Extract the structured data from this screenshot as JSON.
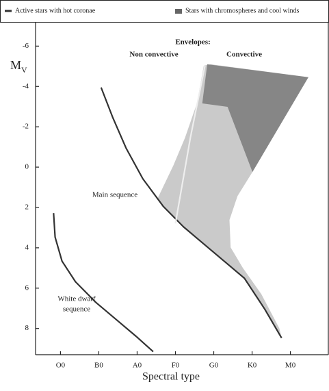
{
  "chart_data": {
    "type": "line",
    "legend": [
      {
        "name": "Active stars with hot coronae",
        "style": "line",
        "color": "#333333"
      },
      {
        "name": "Stars with chromospheres and cool winds",
        "style": "fill",
        "color": "#666666"
      }
    ],
    "y_label": "M",
    "y_label_sub": "V",
    "x_label": "Spectral type",
    "xlim": [
      -0.65,
      6.9
    ],
    "xticks": [
      {
        "value": 0,
        "label": "O0"
      },
      {
        "value": 1,
        "label": "B0"
      },
      {
        "value": 2,
        "label": "A0"
      },
      {
        "value": 3,
        "label": "F0"
      },
      {
        "value": 4,
        "label": "G0"
      },
      {
        "value": 5,
        "label": "K0"
      },
      {
        "value": 6,
        "label": "M0"
      }
    ],
    "ylim": [
      -7.2,
      9.3
    ],
    "y_inverted": true,
    "yticks": [
      -6,
      -4,
      -2,
      0,
      2,
      4,
      6,
      8
    ],
    "annotations": [
      "Envelopes:",
      "Non convective",
      "Convective",
      "Main sequence",
      "White dwarf",
      "sequence"
    ],
    "regions": [
      {
        "color": "#c4c4c4",
        "x": [
          2.54,
          2.95,
          3.25,
          3.56,
          3.74,
          3.92,
          6.47,
          5.01,
          4.62,
          4.41,
          4.44,
          4.76,
          5.24,
          5.71,
          5.77,
          5.33,
          4.8,
          4.27,
          3.74,
          3.21,
          2.68
        ],
        "values": [
          1.53,
          -0.1,
          -1.46,
          -3.16,
          -5.03,
          -5.1,
          -4.46,
          0.24,
          1.43,
          2.62,
          3.98,
          5.0,
          6.29,
          7.99,
          8.47,
          7.04,
          5.51,
          4.66,
          3.81,
          2.96,
          1.94
        ]
      },
      {
        "color": "#7e7e7e",
        "x": [
          3.83,
          6.47,
          5.01,
          4.36,
          3.7
        ],
        "values": [
          -5.1,
          -4.46,
          0.24,
          -2.99,
          -3.16
        ]
      }
    ],
    "series": [
      {
        "color": "#333333",
        "x": [
          1.06,
          1.36,
          1.71,
          2.15,
          2.68,
          3.21,
          3.74,
          4.27,
          4.8,
          5.33,
          5.77
        ],
        "values": [
          -3.95,
          -2.48,
          -0.95,
          0.58,
          1.94,
          2.96,
          3.81,
          4.66,
          5.51,
          7.04,
          8.47
        ]
      },
      {
        "color": "#333333",
        "x": [
          -0.18,
          -0.14,
          0.04,
          0.39,
          0.92,
          1.45,
          1.98,
          2.42
        ],
        "values": [
          2.28,
          3.47,
          4.66,
          5.68,
          6.7,
          7.55,
          8.4,
          9.15
        ]
      },
      {
        "color": "#eeeeee",
        "x": [
          3.0,
          3.39,
          3.77
        ],
        "values": [
          2.79,
          -1.46,
          -5.03
        ]
      }
    ]
  }
}
